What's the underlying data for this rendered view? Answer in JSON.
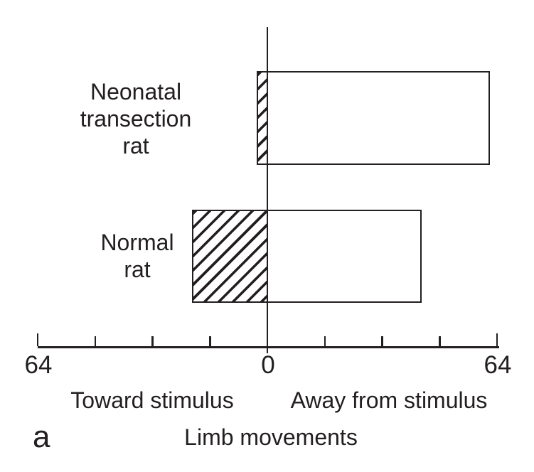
{
  "figure": {
    "panel_label": "a"
  },
  "chart_data": {
    "type": "bar",
    "orientation": "horizontal_diverging",
    "title": "",
    "xlabel": "Limb movements",
    "axis": {
      "unit_min": -64,
      "unit_max": 64,
      "tick_step": 16,
      "left_end_label": "64",
      "center_label": "0",
      "right_end_label": "64",
      "grid": false
    },
    "direction_labels": {
      "left": "Toward stimulus",
      "right": "Away from stimulus"
    },
    "categories": [
      "Neonatal transection rat",
      "Normal rat"
    ],
    "category_display": [
      "Neonatal\ntransection\nrat",
      "Normal\nrat"
    ],
    "series": [
      {
        "name": "Toward stimulus",
        "style": "hatched",
        "values": [
          3,
          21
        ]
      },
      {
        "name": "Away from stimulus",
        "style": "open",
        "values": [
          62,
          43
        ]
      }
    ],
    "colors": {
      "stroke": "#231f20",
      "background": "#ffffff"
    }
  }
}
